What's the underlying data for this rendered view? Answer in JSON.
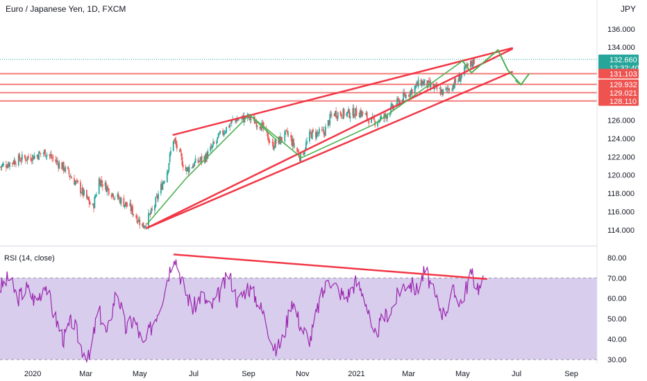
{
  "chart_data": [
    {
      "type": "candlestick",
      "title": "Euro / Japanese Yen, 1D, FXCM",
      "currency": "JPY",
      "ylim": [
        113,
        137.5
      ],
      "y_ticks": [
        114,
        116,
        118,
        120,
        122,
        124,
        126,
        128,
        130,
        132,
        134,
        136
      ],
      "y_tick_labels": [
        "114.000",
        "116.000",
        "118.000",
        "120.000",
        "122.000",
        "124.000",
        "126.000",
        "128.000",
        "130.000",
        "132.000",
        "134.000",
        "136.000"
      ],
      "x_range": [
        "2019-11-25",
        "2021-09-30"
      ],
      "x_ticks": [
        {
          "date": "2020-01-01",
          "label": "2020"
        },
        {
          "date": "2020-03-01",
          "label": "Mar"
        },
        {
          "date": "2020-05-01",
          "label": "May"
        },
        {
          "date": "2020-07-01",
          "label": "Jul"
        },
        {
          "date": "2020-09-01",
          "label": "Sep"
        },
        {
          "date": "2020-11-01",
          "label": "Nov"
        },
        {
          "date": "2021-01-01",
          "label": "2021"
        },
        {
          "date": "2021-03-01",
          "label": "Mar"
        },
        {
          "date": "2021-05-01",
          "label": "May"
        },
        {
          "date": "2021-07-01",
          "label": "Jul"
        },
        {
          "date": "2021-09-01",
          "label": "Sep"
        }
      ],
      "price_path": [
        [
          "2019-11-25",
          120.9
        ],
        [
          "2019-12-15",
          121.7
        ],
        [
          "2019-12-31",
          122.0
        ],
        [
          "2020-01-15",
          122.5
        ],
        [
          "2020-02-05",
          120.8
        ],
        [
          "2020-02-20",
          119.0
        ],
        [
          "2020-03-09",
          116.4
        ],
        [
          "2020-03-16",
          119.5
        ],
        [
          "2020-03-31",
          118.0
        ],
        [
          "2020-04-20",
          116.4
        ],
        [
          "2020-05-05",
          114.4
        ],
        [
          "2020-05-15",
          116.0
        ],
        [
          "2020-06-01",
          120.5
        ],
        [
          "2020-06-08",
          124.0
        ],
        [
          "2020-06-22",
          120.5
        ],
        [
          "2020-07-01",
          121.2
        ],
        [
          "2020-07-15",
          122.0
        ],
        [
          "2020-08-01",
          124.5
        ],
        [
          "2020-08-15",
          126.0
        ],
        [
          "2020-09-01",
          126.3
        ],
        [
          "2020-09-15",
          125.5
        ],
        [
          "2020-09-28",
          123.2
        ],
        [
          "2020-10-15",
          124.5
        ],
        [
          "2020-10-30",
          121.9
        ],
        [
          "2020-11-10",
          124.5
        ],
        [
          "2020-11-25",
          124.6
        ],
        [
          "2020-12-05",
          126.8
        ],
        [
          "2020-12-20",
          126.7
        ],
        [
          "2021-01-05",
          126.9
        ],
        [
          "2021-01-20",
          125.8
        ],
        [
          "2021-02-01",
          126.3
        ],
        [
          "2021-02-15",
          127.8
        ],
        [
          "2021-03-01",
          129.0
        ],
        [
          "2021-03-15",
          130.2
        ],
        [
          "2021-03-30",
          129.5
        ],
        [
          "2021-04-10",
          129.0
        ],
        [
          "2021-04-25",
          130.3
        ],
        [
          "2021-05-05",
          131.6
        ],
        [
          "2021-05-15",
          132.6
        ]
      ],
      "current_price": 132.66,
      "countdown": "12:32:40",
      "horizontal_levels": [
        131.103,
        129.932,
        129.021,
        128.11
      ],
      "horizontal_level_labels": [
        "131.103",
        "129.932",
        "129.021",
        "128.110"
      ],
      "wedge_lines": [
        {
          "from": [
            "2020-05-09",
            114.2
          ],
          "to": [
            "2021-06-26",
            133.8
          ]
        },
        {
          "from": [
            "2020-06-08",
            124.4
          ],
          "to": [
            "2021-06-26",
            133.9
          ]
        },
        {
          "from": [
            "2020-05-09",
            114.2
          ],
          "to": [
            "2021-06-26",
            131.3
          ]
        }
      ],
      "projection_path": [
        [
          "2021-05-01",
          132.5
        ],
        [
          "2021-05-11",
          131.2
        ],
        [
          "2021-06-10",
          133.7
        ],
        [
          "2021-06-21",
          131.5
        ],
        [
          "2021-07-06",
          129.9
        ]
      ],
      "colors": {
        "up": "#26a69a",
        "down": "#ef5350",
        "wedge": "#f23645",
        "pattern": "#4caf50",
        "level": "#ef5350",
        "price_tag": "#26a69a",
        "level_tag": "#ef5350"
      }
    },
    {
      "type": "line",
      "title": "RSI (14, close)",
      "ylim": [
        28,
        84
      ],
      "y_ticks": [
        30,
        40,
        50,
        60,
        70,
        80
      ],
      "y_tick_labels": [
        "30.00",
        "40.00",
        "50.00",
        "60.00",
        "70.00",
        "80.00"
      ],
      "band": [
        30,
        70
      ],
      "series": [
        {
          "values": [
            [
              "2019-11-25",
              65
            ],
            [
              "2019-12-05",
              70
            ],
            [
              "2019-12-15",
              60
            ],
            [
              "2019-12-25",
              65
            ],
            [
              "2020-01-05",
              58
            ],
            [
              "2020-01-15",
              68
            ],
            [
              "2020-01-25",
              52
            ],
            [
              "2020-02-05",
              40
            ],
            [
              "2020-02-15",
              50
            ],
            [
              "2020-02-25",
              36
            ],
            [
              "2020-03-05",
              30
            ],
            [
              "2020-03-15",
              55
            ],
            [
              "2020-03-25",
              42
            ],
            [
              "2020-04-05",
              65
            ],
            [
              "2020-04-15",
              45
            ],
            [
              "2020-04-25",
              50
            ],
            [
              "2020-05-05",
              36
            ],
            [
              "2020-05-15",
              47
            ],
            [
              "2020-05-25",
              58
            ],
            [
              "2020-06-05",
              76
            ],
            [
              "2020-06-09",
              82
            ],
            [
              "2020-06-20",
              65
            ],
            [
              "2020-06-30",
              55
            ],
            [
              "2020-07-10",
              62
            ],
            [
              "2020-07-20",
              55
            ],
            [
              "2020-07-31",
              63
            ],
            [
              "2020-08-10",
              72
            ],
            [
              "2020-08-20",
              58
            ],
            [
              "2020-08-31",
              66
            ],
            [
              "2020-09-10",
              60
            ],
            [
              "2020-09-20",
              50
            ],
            [
              "2020-10-01",
              34
            ],
            [
              "2020-10-10",
              40
            ],
            [
              "2020-10-20",
              60
            ],
            [
              "2020-10-31",
              45
            ],
            [
              "2020-11-10",
              40
            ],
            [
              "2020-11-20",
              58
            ],
            [
              "2020-12-01",
              70
            ],
            [
              "2020-12-10",
              65
            ],
            [
              "2020-12-20",
              60
            ],
            [
              "2020-12-31",
              68
            ],
            [
              "2021-01-10",
              62
            ],
            [
              "2021-01-20",
              40
            ],
            [
              "2021-01-31",
              50
            ],
            [
              "2021-02-10",
              55
            ],
            [
              "2021-02-20",
              65
            ],
            [
              "2021-03-01",
              68
            ],
            [
              "2021-03-10",
              64
            ],
            [
              "2021-03-20",
              74
            ],
            [
              "2021-03-31",
              60
            ],
            [
              "2021-04-10",
              52
            ],
            [
              "2021-04-20",
              63
            ],
            [
              "2021-04-30",
              58
            ],
            [
              "2021-05-10",
              72
            ],
            [
              "2021-05-20",
              65
            ],
            [
              "2021-05-25",
              68
            ]
          ]
        }
      ],
      "trend_line": {
        "from": [
          "2020-06-09",
          81.5
        ],
        "to": [
          "2021-05-28",
          69.5
        ]
      },
      "colors": {
        "line": "#9c27b0",
        "band_fill": "#d1c4e9",
        "trend": "#f23645"
      }
    }
  ]
}
